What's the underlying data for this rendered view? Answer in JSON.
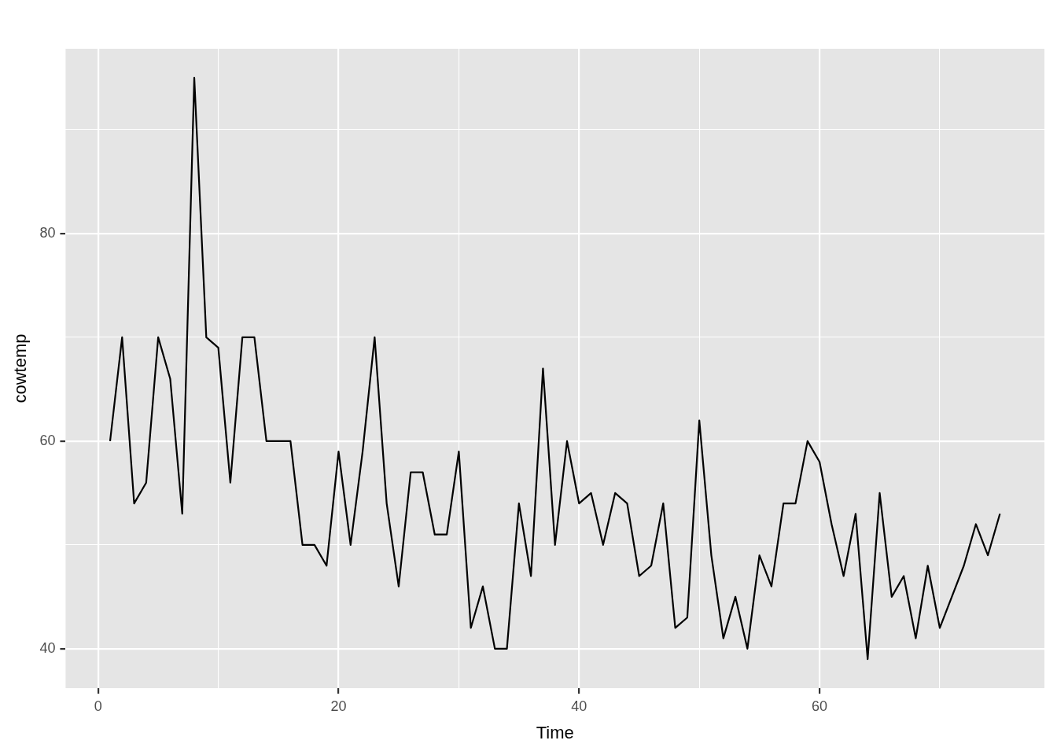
{
  "chart_data": {
    "type": "line",
    "xlabel": "Time",
    "ylabel": "cowtemp",
    "x": [
      1,
      2,
      3,
      4,
      5,
      6,
      7,
      8,
      9,
      10,
      11,
      12,
      13,
      14,
      15,
      16,
      17,
      18,
      19,
      20,
      21,
      22,
      23,
      24,
      25,
      26,
      27,
      28,
      29,
      30,
      31,
      32,
      33,
      34,
      35,
      36,
      37,
      38,
      39,
      40,
      41,
      42,
      43,
      44,
      45,
      46,
      47,
      48,
      49,
      50,
      51,
      52,
      53,
      54,
      55,
      56,
      57,
      58,
      59,
      60,
      61,
      62,
      63,
      64,
      65,
      66,
      67,
      68,
      69,
      70,
      71,
      72,
      73,
      74,
      75
    ],
    "series": [
      {
        "color": "#000000",
        "values": [
          60,
          70,
          54,
          56,
          70,
          66,
          53,
          95,
          70,
          69,
          56,
          70,
          70,
          60,
          60,
          60,
          50,
          50,
          48,
          59,
          50,
          59,
          70,
          54,
          46,
          57,
          57,
          51,
          51,
          59,
          42,
          46,
          40,
          40,
          54,
          47,
          67,
          50,
          60,
          54,
          55,
          50,
          55,
          54,
          47,
          48,
          54,
          42,
          43,
          62,
          49,
          41,
          45,
          40,
          49,
          46,
          54,
          54,
          60,
          58,
          52,
          47,
          53,
          39,
          55,
          45,
          47,
          41,
          48,
          42,
          45,
          48,
          52,
          49,
          53
        ]
      }
    ],
    "xlim": [
      -2.7,
      78.7
    ],
    "ylim": [
      36.2,
      97.8
    ],
    "xticks": [
      0,
      {
        "value": 10,
        "label": null
      },
      20,
      {
        "value": 30,
        "label": null
      },
      40,
      {
        "value": 50,
        "label": null
      },
      60,
      {
        "value": 70,
        "label": null
      }
    ],
    "yticks": [
      40,
      {
        "value": 50,
        "label": null
      },
      60,
      {
        "value": 70,
        "label": null
      },
      80,
      {
        "value": 90,
        "label": null
      }
    ],
    "grid": true,
    "legend": false,
    "marker": "none",
    "line_style": "solid"
  }
}
